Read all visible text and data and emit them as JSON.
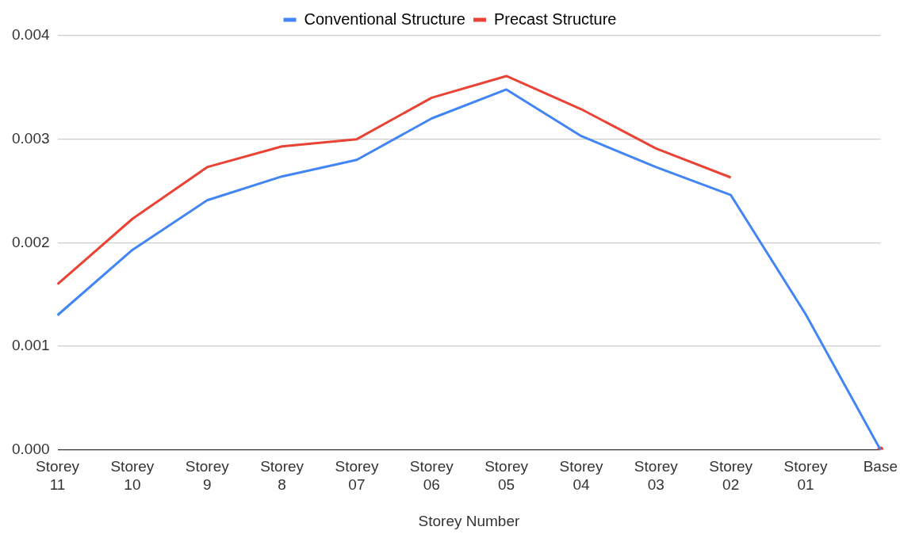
{
  "chart_data": {
    "type": "line",
    "xlabel": "Storey Number",
    "categories": [
      "Storey 11",
      "Storey 10",
      "Storey 9",
      "Storey 8",
      "Storey 07",
      "Storey 06",
      "Storey 05",
      "Storey 04",
      "Storey 03",
      "Storey 02",
      "Storey 01",
      "Base"
    ],
    "series": [
      {
        "name": "Conventional Structure",
        "color": "#4285f4",
        "values": [
          0.0013,
          0.00193,
          0.00241,
          0.00264,
          0.0028,
          0.0032,
          0.00348,
          0.00303,
          0.00273,
          0.00246,
          0.00131,
          0
        ]
      },
      {
        "name": "Precast Structure",
        "color": "#ea4335",
        "values": [
          0.0016,
          0.00223,
          0.00273,
          0.00293,
          0.003,
          0.0034,
          0.00361,
          0.00329,
          0.00291,
          0.00263,
          null,
          0
        ]
      }
    ],
    "ylim": [
      0,
      0.004
    ],
    "yticks": [
      {
        "value": 0,
        "label": "0.000"
      },
      0.001,
      0.002,
      0.003,
      0.004
    ],
    "grid": "y",
    "legend": "top",
    "marker": "none",
    "line_style": "solid"
  }
}
